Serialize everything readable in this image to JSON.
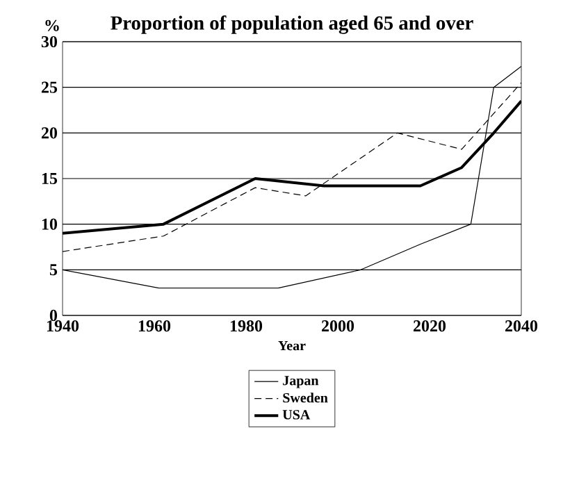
{
  "chart_data": {
    "type": "line",
    "title": "Proportion of population aged 65 and over",
    "xlabel": "Year",
    "ylabel": "%",
    "xlim": [
      1940,
      2040
    ],
    "xticks": [
      1940,
      1960,
      1980,
      2000,
      2020,
      2040
    ],
    "ylim": [
      0,
      30
    ],
    "yticks": [
      0,
      5,
      10,
      15,
      20,
      25,
      30
    ],
    "grid": "y",
    "legend": "bottom",
    "marker": "none",
    "series": [
      {
        "name": "Japan",
        "color": "#000000",
        "line_style": "solid",
        "x": [
          1940,
          1961,
          1987,
          2005,
          2018,
          2029,
          2034,
          2040
        ],
        "values": [
          5,
          3,
          3,
          5,
          7.8,
          10,
          25,
          27.3
        ]
      },
      {
        "name": "Sweden",
        "color": "#000000",
        "line_style": "dashed",
        "x": [
          1940,
          1962,
          1982,
          1993,
          2013,
          2027,
          2040
        ],
        "values": [
          7,
          8.7,
          14,
          13.1,
          20,
          18.2,
          25.5
        ]
      },
      {
        "name": "USA",
        "color": "#000000",
        "line_style": "solid",
        "x": [
          1940,
          1962,
          1982,
          1997,
          2018,
          2027,
          2034,
          2040
        ],
        "values": [
          9,
          10,
          15,
          14.2,
          14.2,
          16.2,
          20,
          23.5
        ]
      }
    ]
  }
}
